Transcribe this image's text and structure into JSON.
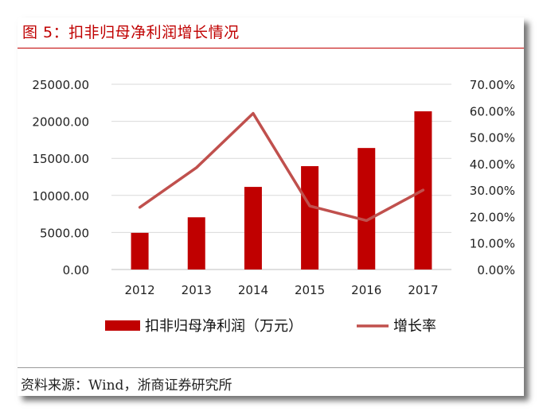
{
  "header": {
    "title": "图 5：扣非归母净利润增长情况"
  },
  "footer": {
    "source": "资料来源：Wind，浙商证券研究所"
  },
  "colors": {
    "bar": "#c00000",
    "line": "#c0504d",
    "grid": "#d9d9d9",
    "title": "#c00000"
  },
  "chart_data": {
    "type": "bar",
    "categories": [
      "2012",
      "2013",
      "2014",
      "2015",
      "2016",
      "2017"
    ],
    "series": [
      {
        "name": "扣非归母净利润（万元）",
        "type": "bar",
        "axis": "left",
        "values": [
          4950,
          7050,
          11150,
          13950,
          16400,
          21350
        ]
      },
      {
        "name": "增长率",
        "type": "line",
        "axis": "right",
        "values": [
          0.235,
          0.385,
          0.59,
          0.24,
          0.185,
          0.3
        ]
      }
    ],
    "y_left": {
      "min": 0,
      "max": 25000,
      "ticks": [
        "0.00",
        "5000.00",
        "10000.00",
        "15000.00",
        "20000.00",
        "25000.00"
      ]
    },
    "y_right": {
      "min": 0,
      "max": 0.7,
      "ticks": [
        "0.00%",
        "10.00%",
        "20.00%",
        "30.00%",
        "40.00%",
        "50.00%",
        "60.00%",
        "70.00%"
      ]
    },
    "legend": {
      "position": "bottom"
    },
    "grid": true
  }
}
